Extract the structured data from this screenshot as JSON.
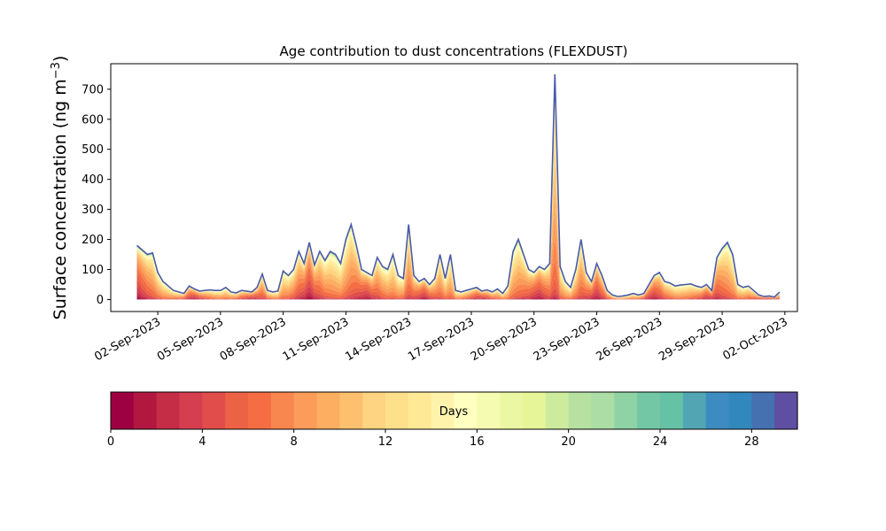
{
  "chart_data": {
    "type": "area",
    "title": "Age contribution to dust concentrations (FLEXDUST)",
    "ylabel": "Surface concentration (ng m",
    "ylabel_sup": "−3",
    "ylabel_close": ")",
    "xlabel": "",
    "ylim": [
      -40,
      785
    ],
    "yticks": [
      0,
      100,
      200,
      300,
      400,
      500,
      600,
      700
    ],
    "xlim": [
      -1.25,
      31.6
    ],
    "xticks": [
      {
        "day": 1,
        "label": "02-Sep-2023"
      },
      {
        "day": 4,
        "label": "05-Sep-2023"
      },
      {
        "day": 7,
        "label": "08-Sep-2023"
      },
      {
        "day": 10,
        "label": "11-Sep-2023"
      },
      {
        "day": 13,
        "label": "14-Sep-2023"
      },
      {
        "day": 16,
        "label": "17-Sep-2023"
      },
      {
        "day": 19,
        "label": "20-Sep-2023"
      },
      {
        "day": 22,
        "label": "23-Sep-2023"
      },
      {
        "day": 25,
        "label": "26-Sep-2023"
      },
      {
        "day": 28,
        "label": "29-Sep-2023"
      },
      {
        "day": 31,
        "label": "02-Oct-2023"
      }
    ],
    "x_unit": "days since 01-Sep-2023",
    "total_series": {
      "x": [
        0.0,
        0.25,
        0.5,
        0.75,
        1.0,
        1.25,
        1.5,
        1.75,
        2.0,
        2.25,
        2.5,
        2.75,
        3.0,
        3.25,
        3.5,
        3.75,
        4.0,
        4.25,
        4.5,
        4.75,
        5.0,
        5.25,
        5.5,
        5.75,
        6.0,
        6.25,
        6.5,
        6.75,
        7.0,
        7.25,
        7.5,
        7.75,
        8.0,
        8.25,
        8.5,
        8.75,
        9.0,
        9.25,
        9.5,
        9.75,
        10.0,
        10.25,
        10.5,
        10.75,
        11.0,
        11.25,
        11.5,
        11.75,
        12.0,
        12.25,
        12.5,
        12.75,
        13.0,
        13.25,
        13.5,
        13.75,
        14.0,
        14.25,
        14.5,
        14.75,
        15.0,
        15.25,
        15.5,
        15.75,
        16.0,
        16.25,
        16.5,
        16.75,
        17.0,
        17.25,
        17.5,
        17.75,
        18.0,
        18.25,
        18.5,
        18.75,
        19.0,
        19.25,
        19.5,
        19.75,
        20.0,
        20.25,
        20.5,
        20.75,
        21.0,
        21.25,
        21.5,
        21.75,
        22.0,
        22.25,
        22.5,
        22.75,
        23.0,
        23.25,
        23.5,
        23.75,
        24.0,
        24.25,
        24.5,
        24.75,
        25.0,
        25.25,
        25.5,
        25.75,
        26.0,
        26.25,
        26.5,
        26.75,
        27.0,
        27.25,
        27.5,
        27.75,
        28.0,
        28.25,
        28.5,
        28.75,
        29.0,
        29.25,
        29.5,
        29.75,
        30.0,
        30.25,
        30.5,
        30.75
      ],
      "y": [
        180,
        165,
        150,
        155,
        90,
        60,
        45,
        30,
        25,
        20,
        45,
        35,
        28,
        30,
        32,
        30,
        30,
        40,
        25,
        22,
        30,
        28,
        25,
        40,
        85,
        30,
        25,
        28,
        95,
        80,
        100,
        160,
        120,
        190,
        115,
        160,
        130,
        160,
        150,
        120,
        200,
        250,
        180,
        100,
        90,
        80,
        140,
        110,
        100,
        150,
        80,
        70,
        250,
        80,
        60,
        70,
        50,
        70,
        150,
        70,
        150,
        30,
        25,
        30,
        35,
        40,
        28,
        32,
        25,
        35,
        20,
        45,
        160,
        200,
        150,
        100,
        90,
        110,
        100,
        120,
        750,
        110,
        60,
        40,
        100,
        200,
        90,
        60,
        120,
        80,
        30,
        15,
        10,
        12,
        15,
        20,
        15,
        20,
        50,
        80,
        90,
        60,
        55,
        45,
        48,
        50,
        52,
        45,
        40,
        50,
        30,
        140,
        170,
        190,
        150,
        50,
        40,
        45,
        30,
        15,
        10,
        12,
        8,
        25
      ]
    },
    "colorbar": {
      "label": "Days",
      "min": 0,
      "max": 30,
      "n_bins": 30,
      "ticks": [
        0,
        4,
        8,
        12,
        16,
        20,
        24,
        28
      ],
      "colormap": "Spectral",
      "colors": [
        "#9e0142",
        "#b2183f",
        "#c52c45",
        "#d53e4f",
        "#e04d4a",
        "#ec6245",
        "#f46d43",
        "#f8864f",
        "#fb9c5a",
        "#fdae61",
        "#fdc06f",
        "#fed381",
        "#fee08b",
        "#fee996",
        "#fff3ac",
        "#ffffbf",
        "#f6fbb2",
        "#ecf7a3",
        "#e6f598",
        "#cdeb9c",
        "#b6e1a1",
        "#abdda4",
        "#8fd3a4",
        "#74c7a5",
        "#66c2a5",
        "#52a6b4",
        "#3d8bc0",
        "#3288bd",
        "#4671b0",
        "#5e4fa2"
      ]
    },
    "line_color": "#4a5aa8",
    "grid": false,
    "legend": "colorbar-bottom"
  }
}
